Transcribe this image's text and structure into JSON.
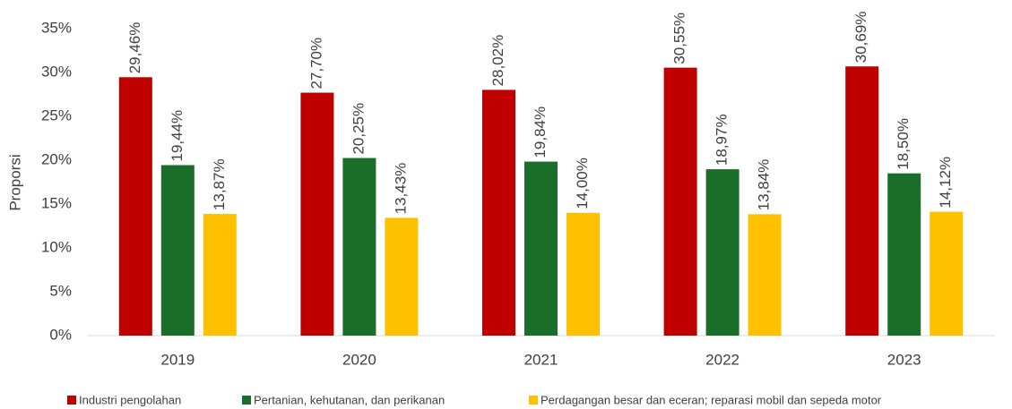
{
  "chart_data": {
    "type": "bar",
    "y_label": "Proporsi",
    "categories": [
      "2019",
      "2020",
      "2021",
      "2022",
      "2023"
    ],
    "series": [
      {
        "name": "Industri pengolahan",
        "color": "#c00000",
        "values": [
          29.46,
          27.7,
          28.02,
          30.55,
          30.69
        ],
        "value_labels": [
          "29,46%",
          "27,70%",
          "28,02%",
          "30,55%",
          "30,69%"
        ]
      },
      {
        "name": "Pertanian, kehutanan, dan perikanan",
        "color": "#1a6e2a",
        "values": [
          19.44,
          20.25,
          19.84,
          18.97,
          18.5
        ],
        "value_labels": [
          "19,44%",
          "20,25%",
          "19,84%",
          "18,97%",
          "18,50%"
        ]
      },
      {
        "name": "Perdagangan besar dan eceran; reparasi mobil dan sepeda motor",
        "color": "#ffc000",
        "values": [
          13.87,
          13.43,
          14.0,
          13.84,
          14.12
        ],
        "value_labels": [
          "13,87%",
          "13,43%",
          "14,00%",
          "13,84%",
          "14,12%"
        ]
      }
    ],
    "ylim": [
      0,
      35
    ],
    "yticks": [
      {
        "value": 0,
        "label": "0%"
      },
      {
        "value": 5,
        "label": "5%"
      },
      {
        "value": 10,
        "label": "10%"
      },
      {
        "value": 15,
        "label": "15%"
      },
      {
        "value": 20,
        "label": "20%"
      },
      {
        "value": 25,
        "label": "25%"
      },
      {
        "value": 30,
        "label": "30%"
      },
      {
        "value": 35,
        "label": "35%"
      }
    ],
    "grid": false,
    "legend": "bottom"
  }
}
